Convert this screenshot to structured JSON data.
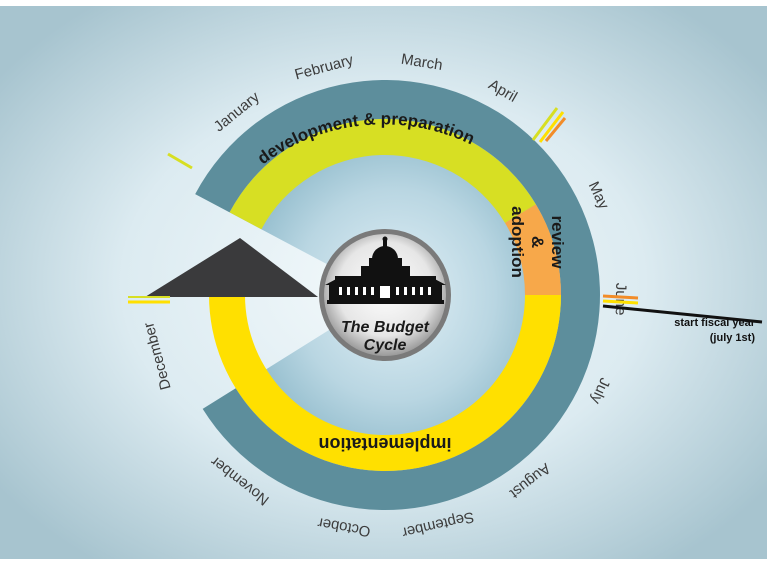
{
  "diagram": {
    "months": [
      "January",
      "February",
      "March",
      "April",
      "May",
      "June",
      "July",
      "August",
      "September",
      "October",
      "November",
      "December"
    ],
    "phases": {
      "development": "development & preparation",
      "review_line1": "review",
      "review_line2": "&",
      "review_line3": "adoption",
      "implementation": "implementation"
    },
    "center": {
      "line1": "The Budget",
      "line2": "Cycle"
    },
    "annotation": {
      "line1": "start fiscal year",
      "line2": "(july 1st)"
    },
    "colors": {
      "background_light": "#eef6f9",
      "background_dark": "#a9c6d1",
      "outer_ring": "#5d8e9c",
      "development": "#d7df23",
      "review": "#f7a84a",
      "implementation": "#ffe000",
      "wedge": "#3a3a3c",
      "marker_orange": "#f28c28",
      "marker_black": "#111111"
    }
  }
}
